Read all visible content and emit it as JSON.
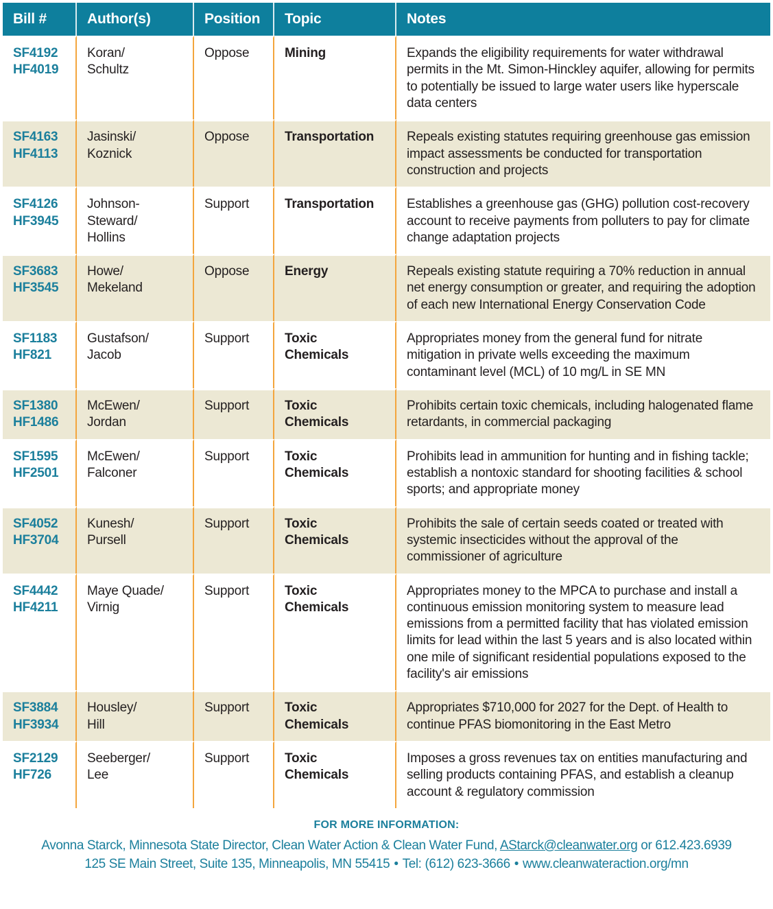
{
  "colors": {
    "header_bg": "#0e7f9d",
    "bill_number_teal": "#1b7f9c",
    "row_alt_cream": "#ece8d4",
    "divider_orange": "#f3a53d",
    "body_text": "#231f20"
  },
  "table": {
    "headers": [
      "Bill #",
      "Author(s)",
      "Position",
      "Topic",
      "Notes"
    ],
    "rows": [
      {
        "bill": "SF4192\nHF4019",
        "authors": "Koran/\nSchultz",
        "position": "Oppose",
        "topic": "Mining",
        "notes": "Expands the eligibility requirements for water withdrawal permits in the Mt. Simon-Hinckley aquifer, allowing for permits to potentially be issued to large water users like hyperscale data centers"
      },
      {
        "bill": "SF4163\nHF4113",
        "authors": "Jasinski/\nKoznick",
        "position": "Oppose",
        "topic": "Transportation",
        "notes": "Repeals existing statutes requiring greenhouse gas emission impact assessments be conducted for transportation construction and projects"
      },
      {
        "bill": "SF4126\nHF3945",
        "authors": "Johnson-\nSteward/\nHollins",
        "position": "Support",
        "topic": "Transportation",
        "notes": "Establishes a greenhouse gas (GHG) pollution cost-recovery account to receive payments from polluters to pay for climate change adaptation projects"
      },
      {
        "bill": "SF3683\nHF3545",
        "authors": "Howe/\nMekeland",
        "position": "Oppose",
        "topic": "Energy",
        "notes": "Repeals existing statute requiring a 70% reduction in annual net energy consumption or greater, and requiring the adoption of each new International Energy Conservation Code"
      },
      {
        "bill": "SF1183\nHF821",
        "authors": "Gustafson/\nJacob",
        "position": "Support",
        "topic": "Toxic\nChemicals",
        "notes": "Appropriates money from the general fund for nitrate mitigation in private wells exceeding the maximum contaminant level (MCL) of 10 mg/L in SE MN"
      },
      {
        "bill": "SF1380\nHF1486",
        "authors": "McEwen/\nJordan",
        "position": "Support",
        "topic": "Toxic\nChemicals",
        "notes": "Prohibits certain toxic chemicals, including halogenated flame retardants, in commercial packaging"
      },
      {
        "bill": "SF1595\nHF2501",
        "authors": "McEwen/\nFalconer",
        "position": "Support",
        "topic": "Toxic\nChemicals",
        "notes": "Prohibits lead in ammunition for hunting and in fishing tackle; establish a nontoxic standard for shooting facilities & school sports; and appropriate money"
      },
      {
        "bill": "SF4052\nHF3704",
        "authors": "Kunesh/\nPursell",
        "position": "Support",
        "topic": "Toxic\nChemicals",
        "notes": "Prohibits the sale of certain seeds coated or treated with systemic insecticides without the approval of the commissioner of agriculture"
      },
      {
        "bill": "SF4442\nHF4211",
        "authors": "Maye Quade/\nVirnig",
        "position": "Support",
        "topic": "Toxic\nChemicals",
        "notes": "Appropriates money to the MPCA to purchase and install a continuous emission monitoring system to measure lead emissions from a permitted facility that has violated emission limits for lead within the last 5 years and is also located within one mile of significant residential populations exposed to the facility's air emissions"
      },
      {
        "bill": "SF3884\nHF3934",
        "authors": "Housley/\nHill",
        "position": "Support",
        "topic": "Toxic\nChemicals",
        "notes": "Appropriates $710,000 for 2027 for the Dept. of Health to continue PFAS biomonitoring in the East Metro"
      },
      {
        "bill": "SF2129\nHF726",
        "authors": "Seeberger/\nLee",
        "position": "Support",
        "topic": "Toxic\nChemicals",
        "notes": "Imposes a gross revenues tax on entities manufacturing and selling products containing PFAS, and establish a cleanup account & regulatory commission"
      }
    ]
  },
  "footer": {
    "heading": "FOR MORE INFORMATION:",
    "contact_pre": "Avonna Starck, Minnesota State Director, Clean Water Action & Clean Water Fund, ",
    "email": "AStarck@cleanwater.org",
    "contact_post": " or 612.423.6939",
    "address": "125 SE Main Street, Suite 135, Minneapolis, MN 55415",
    "bullet": "•",
    "phone": "Tel: (612) 623-3666",
    "website": "www.cleanwateraction.org/mn"
  }
}
